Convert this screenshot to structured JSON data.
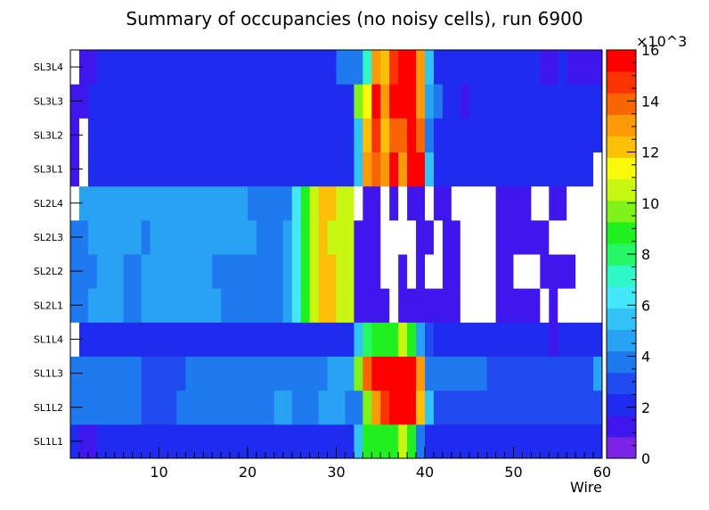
{
  "chart_data": {
    "type": "heatmap",
    "title": "Summary of occupancies (no noisy cells), run 6900",
    "xlabel": "Wire",
    "ylabel": "",
    "xlim": [
      0,
      60
    ],
    "x_ticks": [
      "10",
      "20",
      "30",
      "40",
      "50",
      "60"
    ],
    "y_categories": [
      "SL1L1",
      "SL1L2",
      "SL1L3",
      "SL1L4",
      "SL2L1",
      "SL2L2",
      "SL2L3",
      "SL2L4",
      "SL3L1",
      "SL3L2",
      "SL3L3",
      "SL3L4"
    ],
    "z_multiplier": "×10^3",
    "zlim": [
      0,
      16
    ],
    "z_ticks": [
      "0",
      "2",
      "4",
      "6",
      "8",
      "10",
      "12",
      "14",
      "16"
    ],
    "zero_cells_white": true,
    "palette": [
      "#7c24e6",
      "#3f17ec",
      "#1f2cf0",
      "#1f4bf0",
      "#1f7aef",
      "#28a2f2",
      "#32c3f6",
      "#45e8fa",
      "#2ff7c8",
      "#25f765",
      "#20f01d",
      "#7ff219",
      "#c8f712",
      "#f9f90a",
      "#fbbf08",
      "#fb9a06",
      "#fa6504",
      "#fc3303",
      "#ff0000"
    ],
    "rows": {
      "SL1L1": [
        [
          0,
          1,
          2.3
        ],
        [
          1,
          3,
          1.6
        ],
        [
          3,
          32,
          2.3
        ],
        [
          32,
          33,
          5.4
        ],
        [
          33,
          34,
          9.2
        ],
        [
          34,
          37,
          9.6
        ],
        [
          37,
          38,
          11.0
        ],
        [
          38,
          39,
          9.4
        ],
        [
          39,
          40,
          4.2
        ],
        [
          40,
          43,
          2.6
        ],
        [
          43,
          57,
          1.8
        ],
        [
          57,
          59,
          2.5
        ],
        [
          59,
          60,
          1.9
        ]
      ],
      "SL1L2": [
        [
          0,
          8,
          4.1
        ],
        [
          8,
          12,
          3.0
        ],
        [
          12,
          23,
          4.1
        ],
        [
          23,
          25,
          4.8
        ],
        [
          25,
          28,
          4.1
        ],
        [
          28,
          31,
          4.8
        ],
        [
          31,
          33,
          3.8
        ],
        [
          33,
          34,
          10.6
        ],
        [
          34,
          35,
          13.6
        ],
        [
          35,
          36,
          15.8
        ],
        [
          36,
          39,
          17.0
        ],
        [
          39,
          40,
          13.0
        ],
        [
          40,
          41,
          5.6
        ],
        [
          41,
          60,
          2.7
        ]
      ],
      "SL1L3": [
        [
          0,
          8,
          3.9
        ],
        [
          8,
          13,
          2.9
        ],
        [
          13,
          29,
          3.9
        ],
        [
          29,
          32,
          4.9
        ],
        [
          32,
          33,
          9.8
        ],
        [
          33,
          34,
          15.0
        ],
        [
          34,
          35,
          17.0
        ],
        [
          35,
          37,
          16.2
        ],
        [
          37,
          39,
          17.0
        ],
        [
          39,
          40,
          13.6
        ],
        [
          40,
          47,
          4.1
        ],
        [
          47,
          59,
          3.4
        ],
        [
          59,
          60,
          4.9
        ]
      ],
      "SL1L4": [
        [
          0,
          1,
          0
        ],
        [
          1,
          32,
          2.4
        ],
        [
          32,
          33,
          5.7
        ],
        [
          33,
          34,
          8.4
        ],
        [
          34,
          37,
          9.0
        ],
        [
          37,
          38,
          11.1
        ],
        [
          38,
          39,
          9.0
        ],
        [
          39,
          40,
          4.5
        ],
        [
          40,
          41,
          2.7
        ],
        [
          41,
          54,
          2.1
        ],
        [
          54,
          55,
          1.3
        ],
        [
          55,
          60,
          2.1
        ]
      ],
      "SL2L1": [
        [
          0,
          1,
          3.6
        ],
        [
          1,
          2,
          4.2
        ],
        [
          2,
          6,
          5.1
        ],
        [
          6,
          8,
          4.3
        ],
        [
          8,
          17,
          5.1
        ],
        [
          17,
          21,
          4.3
        ],
        [
          21,
          24,
          3.7
        ],
        [
          24,
          25,
          4.8
        ],
        [
          25,
          26,
          7.0
        ],
        [
          26,
          27,
          9.4
        ],
        [
          27,
          28,
          11.0
        ],
        [
          28,
          30,
          12.6
        ],
        [
          30,
          32,
          11.0
        ],
        [
          32,
          36,
          1.4
        ],
        [
          36,
          37,
          0
        ],
        [
          37,
          38,
          1.4
        ],
        [
          38,
          44,
          1.4
        ],
        [
          44,
          48,
          0
        ],
        [
          48,
          53,
          1.4
        ],
        [
          53,
          54,
          0
        ],
        [
          54,
          55,
          1.4
        ],
        [
          55,
          56,
          0
        ],
        [
          56,
          60,
          0
        ]
      ],
      "SL2L2": [
        [
          0,
          1,
          3.6
        ],
        [
          1,
          3,
          4.2
        ],
        [
          3,
          6,
          5.1
        ],
        [
          6,
          8,
          4.3
        ],
        [
          8,
          16,
          5.1
        ],
        [
          16,
          21,
          4.3
        ],
        [
          21,
          24,
          3.7
        ],
        [
          24,
          25,
          4.8
        ],
        [
          25,
          26,
          7.0
        ],
        [
          26,
          27,
          9.4
        ],
        [
          27,
          28,
          11.0
        ],
        [
          28,
          30,
          12.6
        ],
        [
          30,
          32,
          11.0
        ],
        [
          32,
          35,
          1.4
        ],
        [
          35,
          37,
          0
        ],
        [
          37,
          38,
          1.4
        ],
        [
          38,
          39,
          0
        ],
        [
          39,
          40,
          1.4
        ],
        [
          40,
          42,
          0
        ],
        [
          42,
          44,
          1.4
        ],
        [
          44,
          48,
          0
        ],
        [
          48,
          50,
          1.4
        ],
        [
          50,
          53,
          0
        ],
        [
          53,
          57,
          1.4
        ],
        [
          57,
          60,
          0
        ]
      ],
      "SL2L3": [
        [
          0,
          1,
          3.6
        ],
        [
          1,
          2,
          4.2
        ],
        [
          2,
          8,
          5.1
        ],
        [
          8,
          9,
          4.3
        ],
        [
          9,
          10,
          5.1
        ],
        [
          10,
          13,
          4.6
        ],
        [
          13,
          14,
          5.1
        ],
        [
          14,
          15,
          4.6
        ],
        [
          15,
          21,
          5.1
        ],
        [
          21,
          24,
          4.3
        ],
        [
          24,
          25,
          4.8
        ],
        [
          25,
          26,
          7.0
        ],
        [
          26,
          27,
          9.4
        ],
        [
          27,
          28,
          11.0
        ],
        [
          28,
          29,
          12.6
        ],
        [
          29,
          32,
          11.0
        ],
        [
          32,
          35,
          1.4
        ],
        [
          35,
          39,
          0
        ],
        [
          39,
          41,
          1.4
        ],
        [
          41,
          42,
          0
        ],
        [
          42,
          44,
          1.4
        ],
        [
          44,
          48,
          0
        ],
        [
          48,
          54,
          1.4
        ],
        [
          54,
          60,
          0
        ]
      ],
      "SL2L4": [
        [
          0,
          1,
          0
        ],
        [
          1,
          2,
          5.1
        ],
        [
          2,
          20,
          5.1
        ],
        [
          20,
          25,
          4.3
        ],
        [
          25,
          26,
          7.0
        ],
        [
          26,
          27,
          9.4
        ],
        [
          27,
          28,
          11.0
        ],
        [
          28,
          30,
          12.6
        ],
        [
          30,
          32,
          11.0
        ],
        [
          32,
          33,
          0
        ],
        [
          33,
          35,
          1.4
        ],
        [
          35,
          36,
          0
        ],
        [
          36,
          37,
          1.4
        ],
        [
          37,
          38,
          0
        ],
        [
          38,
          40,
          1.4
        ],
        [
          40,
          41,
          0
        ],
        [
          41,
          43,
          1.4
        ],
        [
          43,
          48,
          0
        ],
        [
          48,
          52,
          1.4
        ],
        [
          52,
          54,
          0
        ],
        [
          54,
          56,
          1.4
        ],
        [
          56,
          60,
          0
        ]
      ],
      "SL3L1": [
        [
          0,
          1,
          1.5
        ],
        [
          1,
          2,
          0
        ],
        [
          2,
          3,
          2.4
        ],
        [
          3,
          4,
          1.8
        ],
        [
          4,
          5,
          2.4
        ],
        [
          5,
          21,
          2.2
        ],
        [
          21,
          32,
          2.6
        ],
        [
          32,
          33,
          5.8
        ],
        [
          33,
          34,
          13.6
        ],
        [
          34,
          35,
          15.0
        ],
        [
          35,
          36,
          13.8
        ],
        [
          36,
          37,
          16.2
        ],
        [
          37,
          38,
          13.8
        ],
        [
          38,
          39,
          17.0
        ],
        [
          39,
          40,
          16.0
        ],
        [
          40,
          41,
          5.6
        ],
        [
          41,
          42,
          2.6
        ],
        [
          42,
          43,
          1.8
        ],
        [
          43,
          44,
          2.6
        ],
        [
          44,
          59,
          2.6
        ],
        [
          59,
          60,
          0
        ]
      ],
      "SL3L2": [
        [
          0,
          1,
          1.6
        ],
        [
          1,
          2,
          0
        ],
        [
          2,
          22,
          2.2
        ],
        [
          22,
          23,
          1.8
        ],
        [
          23,
          24,
          2.2
        ],
        [
          24,
          27,
          2.6
        ],
        [
          27,
          28,
          2.2
        ],
        [
          28,
          32,
          2.6
        ],
        [
          32,
          33,
          6.0
        ],
        [
          33,
          34,
          12.6
        ],
        [
          34,
          35,
          15.5
        ],
        [
          35,
          36,
          13.2
        ],
        [
          36,
          38,
          14.6
        ],
        [
          38,
          39,
          17.0
        ],
        [
          39,
          40,
          15.0
        ],
        [
          40,
          41,
          3.6
        ],
        [
          41,
          60,
          2.5
        ]
      ],
      "SL3L3": [
        [
          0,
          2,
          1.4
        ],
        [
          2,
          24,
          2.2
        ],
        [
          24,
          32,
          2.6
        ],
        [
          32,
          33,
          10.2
        ],
        [
          33,
          34,
          12.4
        ],
        [
          34,
          35,
          16.2
        ],
        [
          35,
          36,
          13.6
        ],
        [
          36,
          38,
          16.0
        ],
        [
          38,
          39,
          16.6
        ],
        [
          39,
          40,
          13.6
        ],
        [
          40,
          41,
          5.0
        ],
        [
          41,
          42,
          3.6
        ],
        [
          42,
          44,
          2.6
        ],
        [
          44,
          45,
          1.4
        ],
        [
          45,
          60,
          2.5
        ]
      ],
      "SL3L4": [
        [
          0,
          1,
          0
        ],
        [
          1,
          3,
          1.5
        ],
        [
          3,
          30,
          2.4
        ],
        [
          30,
          33,
          3.9
        ],
        [
          33,
          34,
          7.2
        ],
        [
          34,
          35,
          13.6
        ],
        [
          35,
          36,
          12.6
        ],
        [
          36,
          37,
          15.4
        ],
        [
          37,
          39,
          17.0
        ],
        [
          39,
          40,
          13.6
        ],
        [
          40,
          41,
          5.4
        ],
        [
          41,
          42,
          2.6
        ],
        [
          42,
          53,
          2.6
        ],
        [
          53,
          55,
          1.5
        ],
        [
          55,
          56,
          2.6
        ],
        [
          56,
          60,
          1.5
        ]
      ]
    }
  }
}
